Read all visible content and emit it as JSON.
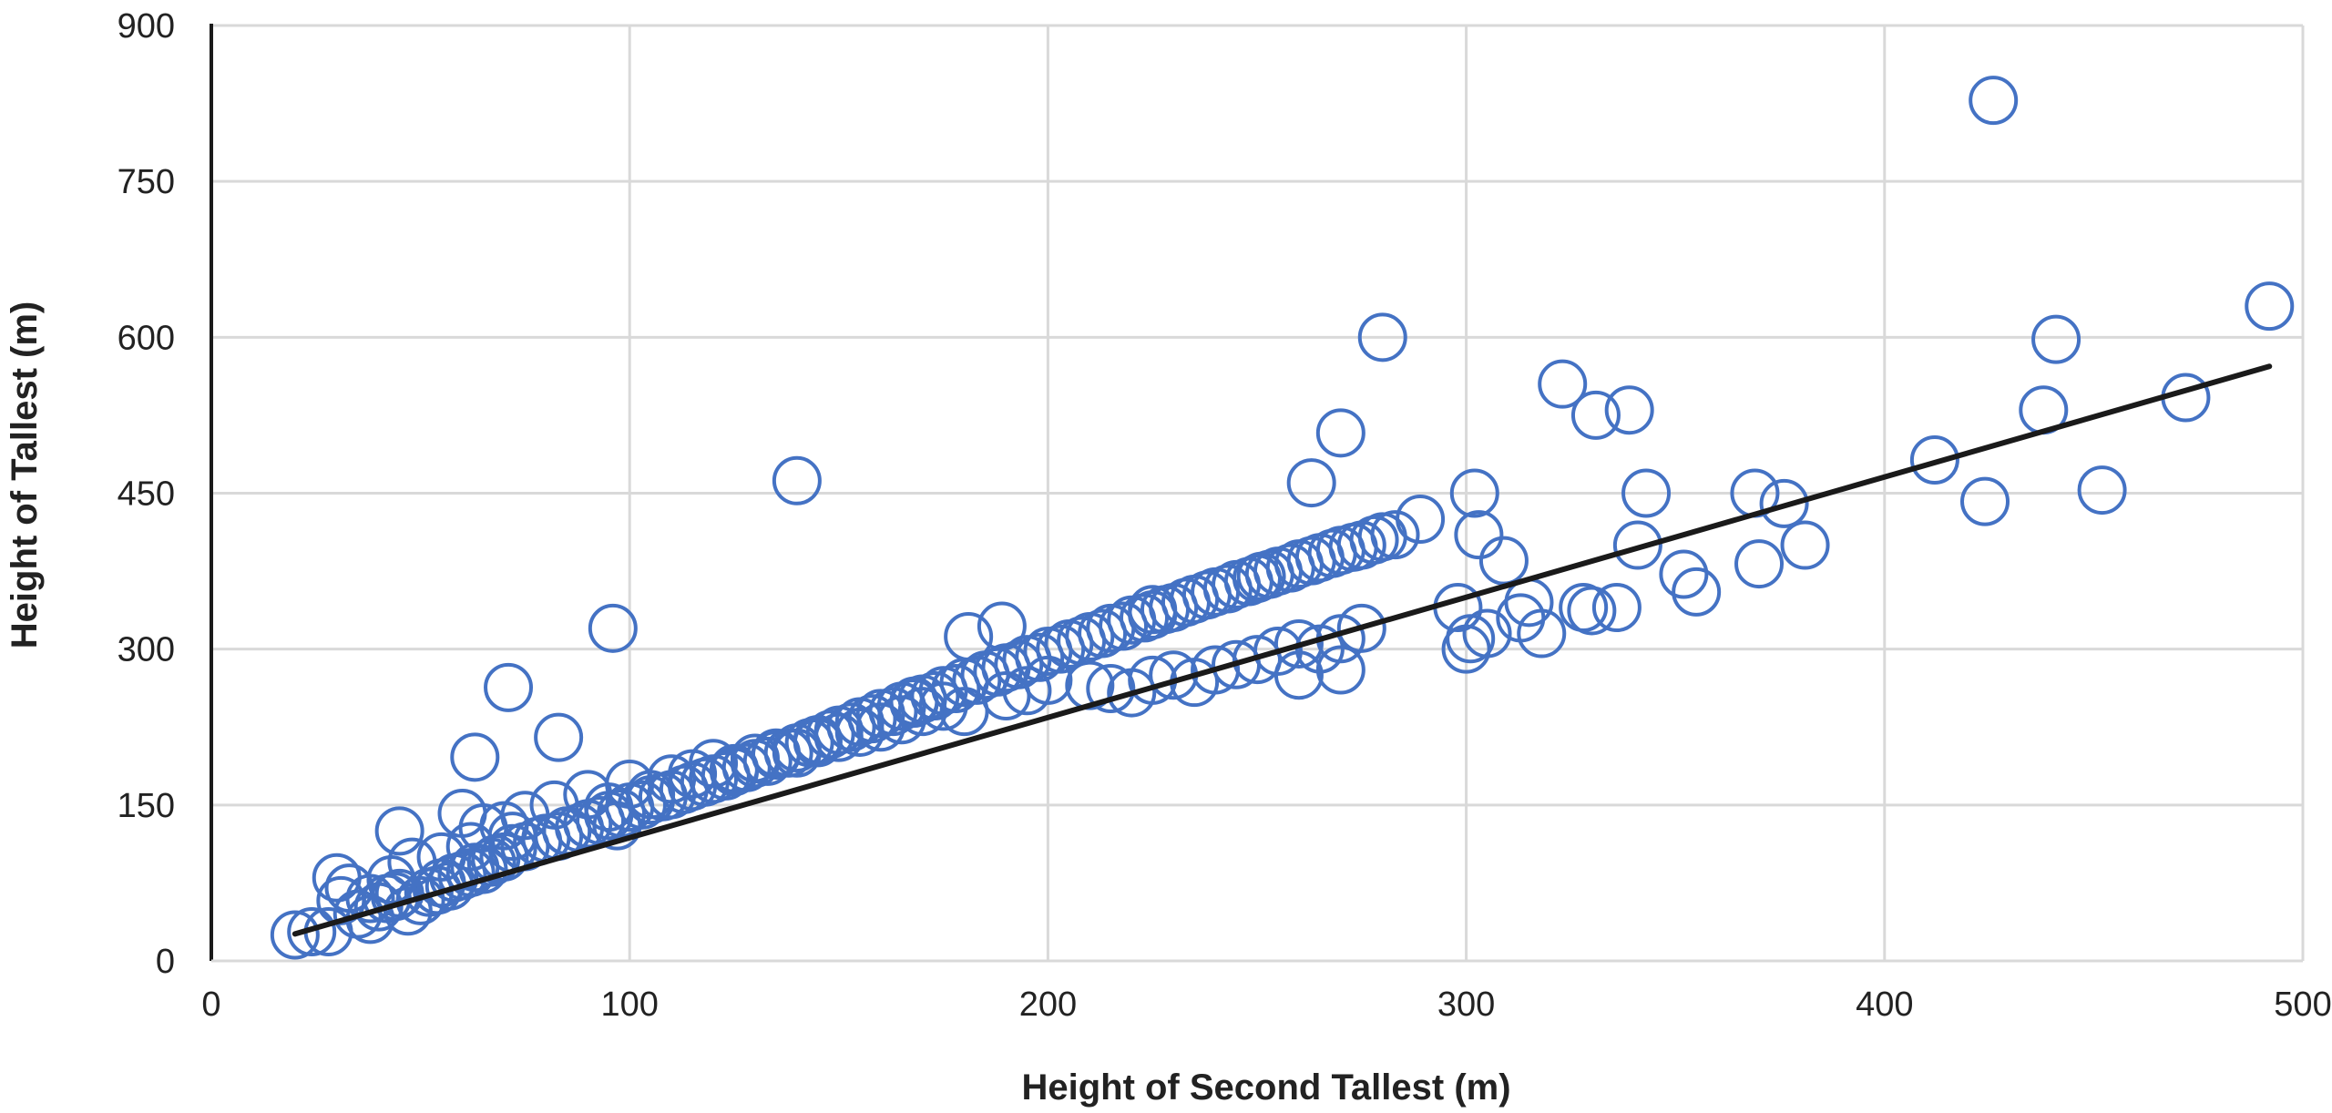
{
  "chart_data": {
    "type": "scatter",
    "title": "",
    "xlabel": "Height of Second Tallest (m)",
    "ylabel": "Height of Tallest (m)",
    "xlim": [
      0,
      500
    ],
    "ylim": [
      0,
      900
    ],
    "x_ticks": [
      "0",
      "100",
      "200",
      "300",
      "400",
      "500"
    ],
    "y_ticks": [
      "0",
      "150",
      "300",
      "450",
      "600",
      "750",
      "900"
    ],
    "grid": true,
    "legend": "none",
    "colors": {
      "points": "#4472C4",
      "trendline": "#1a1a1a",
      "grid": "#d9d9d9"
    },
    "series": [
      {
        "x": [
          20,
          24,
          28,
          31,
          35,
          38,
          40,
          42,
          44,
          45,
          47,
          50,
          52,
          54,
          55,
          57,
          58,
          60,
          62,
          63,
          65,
          67,
          68,
          70,
          72,
          75,
          78,
          80,
          83,
          85,
          88,
          90,
          93,
          95,
          98,
          100,
          103,
          105,
          108,
          110,
          113,
          115,
          118,
          120,
          123,
          125,
          128,
          130,
          133,
          135,
          138,
          140,
          143,
          145,
          148,
          150,
          153,
          155,
          158,
          160,
          163,
          165,
          168,
          170,
          173,
          175,
          178,
          180,
          183,
          185,
          188,
          190,
          193,
          195,
          198,
          200,
          203,
          205,
          208,
          210,
          213,
          215,
          218,
          220,
          223,
          225,
          228,
          230,
          233,
          235,
          238,
          240,
          243,
          245,
          248,
          250,
          253,
          255,
          258,
          260,
          263,
          265,
          268,
          270,
          273,
          275,
          278,
          280,
          283,
          30,
          33,
          38,
          43,
          45,
          48,
          55,
          60,
          62,
          65,
          70,
          72,
          75,
          82,
          85,
          90,
          95,
          97,
          100,
          105,
          110,
          115,
          120,
          125,
          130,
          135,
          140,
          145,
          150,
          155,
          160,
          165,
          170,
          175,
          180,
          190,
          195,
          200,
          210,
          215,
          220,
          225,
          230,
          235,
          240,
          245,
          250,
          255,
          260,
          265,
          270,
          275,
          140,
          96,
          71,
          63,
          83,
          168,
          181,
          189,
          225,
          251,
          263,
          270,
          280,
          289,
          298,
          302,
          303,
          309,
          313,
          318,
          323,
          328,
          331,
          336,
          339,
          341,
          343,
          352,
          355,
          369,
          370,
          376,
          381,
          412,
          424,
          426,
          438,
          441,
          452,
          472,
          492,
          301,
          305,
          315,
          330,
          260,
          270,
          300
        ],
        "y": [
          25,
          28,
          28,
          58,
          45,
          40,
          52,
          60,
          62,
          65,
          48,
          58,
          66,
          68,
          75,
          72,
          80,
          82,
          85,
          90,
          88,
          95,
          98,
          100,
          108,
          110,
          115,
          118,
          120,
          125,
          128,
          132,
          135,
          140,
          142,
          148,
          150,
          155,
          158,
          160,
          165,
          168,
          172,
          175,
          178,
          182,
          186,
          190,
          192,
          198,
          200,
          205,
          210,
          213,
          218,
          222,
          225,
          230,
          233,
          238,
          240,
          245,
          248,
          252,
          255,
          260,
          262,
          268,
          270,
          275,
          278,
          282,
          285,
          290,
          292,
          298,
          300,
          305,
          308,
          312,
          315,
          320,
          322,
          328,
          330,
          333,
          338,
          340,
          345,
          348,
          352,
          355,
          358,
          362,
          365,
          368,
          372,
          375,
          378,
          382,
          385,
          388,
          392,
          395,
          398,
          400,
          405,
          408,
          410,
          80,
          70,
          60,
          78,
          125,
          95,
          100,
          142,
          110,
          128,
          130,
          120,
          140,
          150,
          125,
          160,
          148,
          130,
          170,
          160,
          175,
          180,
          190,
          185,
          195,
          200,
          200,
          210,
          215,
          220,
          225,
          232,
          240,
          245,
          240,
          255,
          260,
          270,
          265,
          262,
          258,
          270,
          275,
          268,
          280,
          285,
          290,
          298,
          305,
          300,
          310,
          320,
          462,
          320,
          263,
          196,
          215,
          250,
          312,
          322,
          338,
          370,
          460,
          508,
          600,
          425,
          340,
          450,
          410,
          385,
          330,
          315,
          555,
          340,
          525,
          340,
          530,
          400,
          450,
          372,
          355,
          450,
          382,
          440,
          400,
          482,
          442,
          828,
          530,
          598,
          453,
          542,
          630,
          310,
          315,
          345,
          337,
          275,
          280,
          300
        ]
      }
    ],
    "trendline": {
      "x": [
        20,
        492
      ],
      "y": [
        26,
        572
      ]
    }
  }
}
